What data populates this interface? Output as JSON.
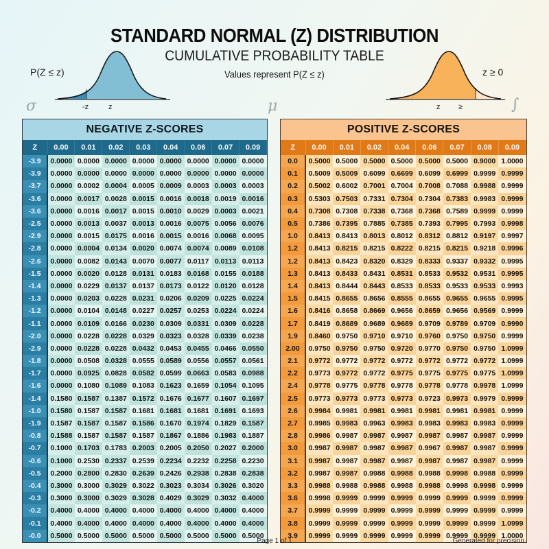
{
  "header": {
    "title": "STANDARD NORMAL (Z) DISTRIBUTION",
    "subtitle": "CUMULATIVE PROBABILITY TABLE",
    "note": "Values represent P(Z ≤ z)"
  },
  "left_curve": {
    "label": "P(Z ≤ z)",
    "axis_labels": [
      "-z",
      "z"
    ],
    "fill_color": "#7fbfd6",
    "shade_color": "#3a8fbf"
  },
  "right_curve": {
    "label": "z ≥ 0",
    "axis_labels": [
      "z",
      "≥"
    ],
    "fill_color": "#f9b35a"
  },
  "symbols": {
    "sigma": "σ",
    "mu": "μ",
    "integral": "∫"
  },
  "colors": {
    "neg_header": "#1f6a8a",
    "neg_title_bg": "#a9d6e4",
    "pos_header": "#e07a18",
    "pos_title_bg": "#f9c48f"
  },
  "negative_table": {
    "title": "NEGATIVE Z-SCORES",
    "columns": [
      "Z",
      "0.00",
      "0.01",
      "0.02",
      "0.03",
      "0.04",
      "0.06",
      "0.07",
      "0.09"
    ],
    "rows": [
      [
        "-3.9",
        "0.0000",
        "0.0000",
        "0.0000",
        "0.0000",
        "0.0000",
        "0.0000",
        "0.0000",
        "0.0000"
      ],
      [
        "-3.9",
        "0.0000",
        "0.0000",
        "0.0000",
        "0.0000",
        "0.0000",
        "0.0000",
        "0.0000",
        "0.0000"
      ],
      [
        "-3.7",
        "0.0000",
        "0.0002",
        "0.0004",
        "0.0005",
        "0.0009",
        "0.0003",
        "0.0003",
        "0.0003"
      ],
      [
        "-3.6",
        "0.0000",
        "0.0017",
        "0.0028",
        "0.0015",
        "0.0016",
        "0.0018",
        "0.0019",
        "0.0016"
      ],
      [
        "-3.6",
        "0.0000",
        "0.0016",
        "0.0017",
        "0.0015",
        "0.0010",
        "0.0029",
        "0.0003",
        "0.0021"
      ],
      [
        "-2.5",
        "0.0000",
        "0.0013",
        "0.0037",
        "0.0013",
        "0.0016",
        "0.0075",
        "0.0056",
        "0.0076"
      ],
      [
        "-2.9",
        "0.0000",
        "0.0015",
        "0.0175",
        "0.0016",
        "0.0015",
        "0.0016",
        "0.0068",
        "0.0095"
      ],
      [
        "-2.8",
        "0.0000",
        "0.0004",
        "0.0134",
        "0.0020",
        "0.0074",
        "0.0074",
        "0.0089",
        "0.0108"
      ],
      [
        "-2.6",
        "0.0000",
        "0.0082",
        "0.0143",
        "0.0070",
        "0.0077",
        "0.0117",
        "0.0113",
        "0.0113"
      ],
      [
        "-1.5",
        "0.0000",
        "0.0020",
        "0.0128",
        "0.0131",
        "0.0183",
        "0.0168",
        "0.0155",
        "0.0188"
      ],
      [
        "-1.4",
        "0.0000",
        "0.0229",
        "0.0137",
        "0.0137",
        "0.0173",
        "0.0122",
        "0.0120",
        "0.0128"
      ],
      [
        "-1.3",
        "0.0000",
        "0.0203",
        "0.0228",
        "0.0231",
        "0.0206",
        "0.0209",
        "0.0225",
        "0.0224"
      ],
      [
        "-1.2",
        "0.0000",
        "0.0104",
        "0.0148",
        "0.0227",
        "0.0257",
        "0.0253",
        "0.0224",
        "0.0224"
      ],
      [
        "-1.1",
        "0.0000",
        "0.0109",
        "0.0166",
        "0.0230",
        "0.0309",
        "0.0331",
        "0.0309",
        "0.0228"
      ],
      [
        "-2.0",
        "0.0000",
        "0.0228",
        "0.0228",
        "0.0329",
        "0.0323",
        "0.0328",
        "0.0339",
        "0.0238"
      ],
      [
        "-2.9",
        "0.0000",
        "0.0228",
        "0.0228",
        "0.0432",
        "0.0453",
        "0.0455",
        "0.0466",
        "0.0550"
      ],
      [
        "-1.8",
        "0.0000",
        "0.0508",
        "0.0328",
        "0.0555",
        "0.0589",
        "0.0556",
        "0.0557",
        "0.0561"
      ],
      [
        "-1.7",
        "0.0000",
        "0.0925",
        "0.0828",
        "0.0582",
        "0.0599",
        "0.0663",
        "0.0583",
        "0.0988"
      ],
      [
        "-1.6",
        "0.0000",
        "0.1080",
        "0.1089",
        "0.1083",
        "0.1623",
        "0.1659",
        "0.1054",
        "0.1095"
      ],
      [
        "-1.4",
        "0.1580",
        "0.1587",
        "0.1387",
        "0.1572",
        "0.1676",
        "0.1677",
        "0.1607",
        "0.1697"
      ],
      [
        "-1.0",
        "0.1580",
        "0.1587",
        "0.1587",
        "0.1681",
        "0.1681",
        "0.1681",
        "0.1691",
        "0.1693"
      ],
      [
        "-1.9",
        "0.1587",
        "0.1587",
        "0.1587",
        "0.1586",
        "0.1670",
        "0.1974",
        "0.1829",
        "0.1587"
      ],
      [
        "-0.8",
        "0.1588",
        "0.1587",
        "0.1587",
        "0.1587",
        "0.1867",
        "0.1886",
        "0.1983",
        "0.1887"
      ],
      [
        "-0.7",
        "0.1000",
        "0.1703",
        "0.1783",
        "0.2003",
        "0.2005",
        "0.2050",
        "0.2027",
        "0.2000"
      ],
      [
        "-0.6",
        "0.1000",
        "0.2530",
        "0.2337",
        "0.2539",
        "0.2234",
        "0.2232",
        "0.2258",
        "0.2230"
      ],
      [
        "-0.5",
        "0.2000",
        "0.2800",
        "0.2830",
        "0.2639",
        "0.2426",
        "0.2938",
        "0.2838",
        "0.2838"
      ],
      [
        "-0.4",
        "0.3000",
        "0.3000",
        "0.3029",
        "0.3022",
        "0.3023",
        "0.3034",
        "0.3026",
        "0.3020"
      ],
      [
        "-0.3",
        "0.3000",
        "0.3000",
        "0.3029",
        "0.3028",
        "0.4029",
        "0.3029",
        "0.3032",
        "0.4000"
      ],
      [
        "-0.2",
        "0.4000",
        "0.4000",
        "0.4000",
        "0.4000",
        "0.4000",
        "0.4000",
        "0.4000",
        "0.4000"
      ],
      [
        "-0.1",
        "0.4000",
        "0.4000",
        "0.4000",
        "0.4000",
        "0.4000",
        "0.4000",
        "0.4000",
        "0.4000"
      ],
      [
        "-0.0",
        "0.5000",
        "0.5000",
        "0.5000",
        "0.5000",
        "0.5000",
        "0.5000",
        "0.5000",
        "0.5000"
      ]
    ]
  },
  "positive_table": {
    "title": "POSITIVE Z-SCORES",
    "columns": [
      "Z",
      "0.00",
      "0.01",
      "0.02",
      "0.04",
      "0.06",
      "0.07",
      "0.08",
      "0.09"
    ],
    "rows": [
      [
        "0.0",
        "0.5000",
        "0.5000",
        "0.5000",
        "0.5000",
        "0.5000",
        "0.5000",
        "0.9000",
        "1.0000"
      ],
      [
        "0.1",
        "0.5009",
        "0.5009",
        "0.6099",
        "0.6699",
        "0.6099",
        "0.6999",
        "0.9999",
        "0.9999"
      ],
      [
        "0.2",
        "0.5002",
        "0.6002",
        "0.7001",
        "0.7004",
        "0.7008",
        "0.7088",
        "0.9988",
        "0.9999"
      ],
      [
        "0.3",
        "0.5303",
        "0.7503",
        "0.7331",
        "0.7304",
        "0.7304",
        "0.7383",
        "0.9983",
        "0.9999"
      ],
      [
        "0.4",
        "0.7308",
        "0.7308",
        "0.7338",
        "0.7368",
        "0.7368",
        "0.7589",
        "0.9999",
        "0.9999"
      ],
      [
        "0.5",
        "0.7386",
        "0.7395",
        "0.7885",
        "0.7385",
        "0.7393",
        "0.7995",
        "0.7993",
        "0.9998"
      ],
      [
        "1.0",
        "0.8413",
        "0.8413",
        "0.8013",
        "0.8012",
        "0.8312",
        "0.8812",
        "0.9197",
        "0.9997"
      ],
      [
        "1.2",
        "0.8413",
        "0.8215",
        "0.8215",
        "0.8222",
        "0.8215",
        "0.8215",
        "0.9218",
        "0.9996"
      ],
      [
        "1.2",
        "0.8413",
        "0.8423",
        "0.8320",
        "0.8329",
        "0.8333",
        "0.9337",
        "0.9332",
        "0.9995"
      ],
      [
        "1.3",
        "0.8413",
        "0.8433",
        "0.8431",
        "0.8531",
        "0.8533",
        "0.9532",
        "0.9531",
        "0.9995"
      ],
      [
        "1.4",
        "0.8413",
        "0.8444",
        "0.8443",
        "0.8533",
        "0.8533",
        "0.9533",
        "0.9533",
        "0.9993"
      ],
      [
        "1.5",
        "0.8415",
        "0.8655",
        "0.8656",
        "0.8555",
        "0.8655",
        "0.9655",
        "0.9655",
        "0.9995"
      ],
      [
        "1.6",
        "0.8416",
        "0.8658",
        "0.8669",
        "0.9656",
        "0.8659",
        "0.9656",
        "0.9569",
        "0.9999"
      ],
      [
        "1.7",
        "0.8419",
        "0.8689",
        "0.9689",
        "0.9689",
        "0.9709",
        "0.9789",
        "0.9709",
        "0.9990"
      ],
      [
        "1.9",
        "0.8460",
        "0.9750",
        "0.9710",
        "0.9710",
        "0.9760",
        "0.9750",
        "0.9750",
        "0.9999"
      ],
      [
        "2.00",
        "0.9750",
        "0.9750",
        "0.9750",
        "0.9720",
        "0.9770",
        "0.9750",
        "0.9750",
        "1.0999"
      ],
      [
        "2.1",
        "0.9772",
        "0.9772",
        "0.9772",
        "0.9772",
        "0.9772",
        "0.9772",
        "0.9772",
        "1.0999"
      ],
      [
        "2.2",
        "0.9773",
        "0.9772",
        "0.9772",
        "0.9775",
        "0.9775",
        "0.9775",
        "0.9775",
        "1.0999"
      ],
      [
        "2.4",
        "0.9778",
        "0.9775",
        "0.9778",
        "0.9778",
        "0.9778",
        "0.9778",
        "0.9978",
        "1.0999"
      ],
      [
        "2.5",
        "0.9773",
        "0.9773",
        "0.9773",
        "0.9773",
        "0.9723",
        "0.9973",
        "0.9979",
        "0.9999"
      ],
      [
        "2.6",
        "0.9984",
        "0.9981",
        "0.9981",
        "0.9981",
        "0.9981",
        "0.9981",
        "0.9981",
        "0.9999"
      ],
      [
        "2.7",
        "0.9985",
        "0.9983",
        "0.9963",
        "0.9983",
        "0.9983",
        "0.9983",
        "0.9983",
        "0.9999"
      ],
      [
        "2.8",
        "0.9986",
        "0.9987",
        "0.9987",
        "0.9987",
        "0.9987",
        "0.9987",
        "0.9987",
        "0.9999"
      ],
      [
        "3.0",
        "0.9987",
        "0.9987",
        "0.9987",
        "0.9987",
        "0.9967",
        "0.9987",
        "0.9987",
        "0.9999"
      ],
      [
        "3.1",
        "0.9987",
        "0.9987",
        "0.9987",
        "0.9987",
        "0.9987",
        "0.9987",
        "0.9987",
        "0.9999"
      ],
      [
        "3.2",
        "0.9987",
        "0.9987",
        "0.9988",
        "0.9988",
        "0.9988",
        "0.9998",
        "0.9988",
        "0.9999"
      ],
      [
        "3.3",
        "0.9988",
        "0.9988",
        "0.9988",
        "0.9988",
        "0.9988",
        "0.9998",
        "0.9998",
        "0.9999"
      ],
      [
        "3.6",
        "0.9998",
        "0.9999",
        "0.9999",
        "0.9999",
        "0.9999",
        "0.9999",
        "0.9999",
        "0.9999"
      ],
      [
        "3.7",
        "0.9999",
        "0.9999",
        "0.9999",
        "0.9999",
        "0.9999",
        "0.9999",
        "0.9999",
        "0.9999"
      ],
      [
        "3.8",
        "0.9999",
        "0.9999",
        "0.9999",
        "0.9999",
        "0.9999",
        "0.9999",
        "0.9999",
        "1.0999"
      ],
      [
        "3.9",
        "0.9999",
        "0.9999",
        "0.9999",
        "0.9999",
        "0.9999",
        "0.9999",
        "0.9999",
        "1.0000"
      ]
    ]
  },
  "footer": {
    "page": "Page 1 of 1",
    "generated": "Generated for precision"
  }
}
